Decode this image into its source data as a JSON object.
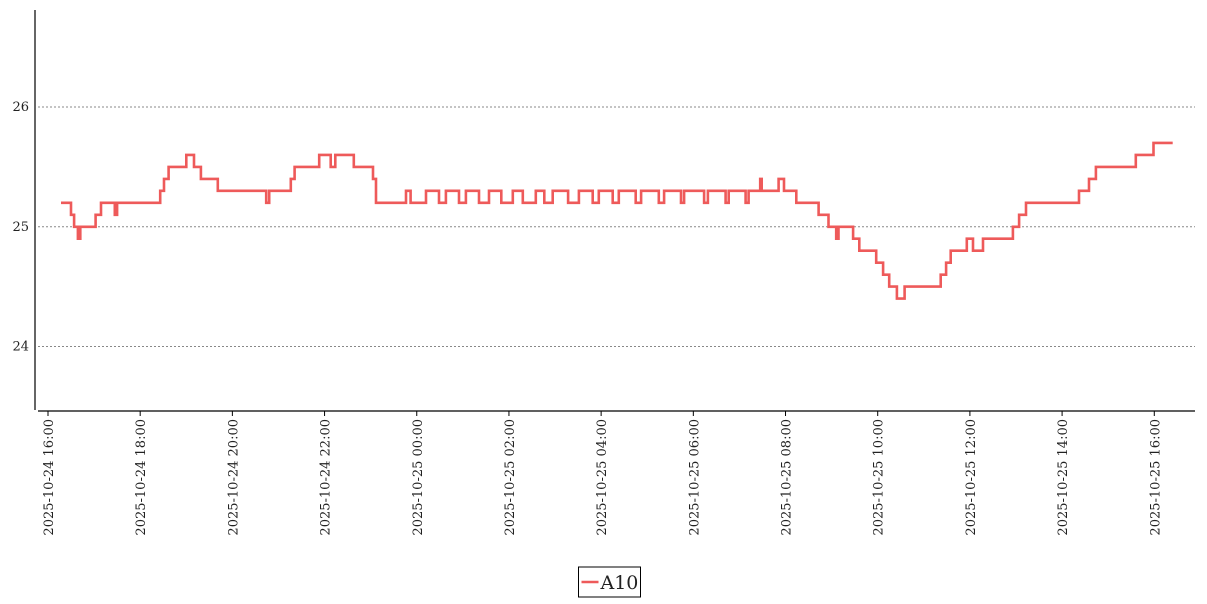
{
  "chart_data": {
    "type": "line",
    "drawstyle": "steps-post",
    "x": [
      "2025-10-24 16:17",
      "2025-10-24 16:30",
      "2025-10-24 16:34",
      "2025-10-24 16:39",
      "2025-10-24 16:42",
      "2025-10-24 17:02",
      "2025-10-24 17:09",
      "2025-10-24 17:27",
      "2025-10-24 17:30",
      "2025-10-24 18:26",
      "2025-10-24 18:31",
      "2025-10-24 18:37",
      "2025-10-24 19:00",
      "2025-10-24 19:10",
      "2025-10-24 19:19",
      "2025-10-24 19:41",
      "2025-10-24 20:44",
      "2025-10-24 20:48",
      "2025-10-24 21:16",
      "2025-10-24 21:21",
      "2025-10-24 21:53",
      "2025-10-24 22:08",
      "2025-10-24 22:14",
      "2025-10-24 22:38",
      "2025-10-24 23:03",
      "2025-10-24 23:07",
      "2025-10-24 23:46",
      "2025-10-24 23:52",
      "2025-10-25 00:12",
      "2025-10-25 00:29",
      "2025-10-25 00:38",
      "2025-10-25 00:55",
      "2025-10-25 01:04",
      "2025-10-25 01:21",
      "2025-10-25 01:34",
      "2025-10-25 01:50",
      "2025-10-25 02:05",
      "2025-10-25 02:18",
      "2025-10-25 02:35",
      "2025-10-25 02:46",
      "2025-10-25 02:57",
      "2025-10-25 03:17",
      "2025-10-25 03:31",
      "2025-10-25 03:49",
      "2025-10-25 03:57",
      "2025-10-25 04:15",
      "2025-10-25 04:23",
      "2025-10-25 04:45",
      "2025-10-25 04:52",
      "2025-10-25 05:15",
      "2025-10-25 05:22",
      "2025-10-25 05:44",
      "2025-10-25 05:48",
      "2025-10-25 06:14",
      "2025-10-25 06:19",
      "2025-10-25 06:42",
      "2025-10-25 06:46",
      "2025-10-25 07:08",
      "2025-10-25 07:12",
      "2025-10-25 07:27",
      "2025-10-25 07:29",
      "2025-10-25 07:51",
      "2025-10-25 07:58",
      "2025-10-25 08:14",
      "2025-10-25 08:43",
      "2025-10-25 08:56",
      "2025-10-25 09:06",
      "2025-10-25 09:09",
      "2025-10-25 09:28",
      "2025-10-25 09:36",
      "2025-10-25 09:58",
      "2025-10-25 10:07",
      "2025-10-25 10:15",
      "2025-10-25 10:25",
      "2025-10-25 10:35",
      "2025-10-25 11:22",
      "2025-10-25 11:29",
      "2025-10-25 11:35",
      "2025-10-25 11:56",
      "2025-10-25 12:04",
      "2025-10-25 12:17",
      "2025-10-25 12:56",
      "2025-10-25 13:04",
      "2025-10-25 13:13",
      "2025-10-25 14:22",
      "2025-10-25 14:35",
      "2025-10-25 14:44",
      "2025-10-25 15:36",
      "2025-10-25 15:59",
      "2025-10-25 16:24"
    ],
    "series": [
      {
        "name": "A10",
        "color": "#ee5a5a",
        "values": [
          25.2,
          25.1,
          25.0,
          24.9,
          25.0,
          25.1,
          25.2,
          25.1,
          25.2,
          25.3,
          25.4,
          25.5,
          25.6,
          25.5,
          25.4,
          25.3,
          25.2,
          25.3,
          25.4,
          25.5,
          25.6,
          25.5,
          25.6,
          25.5,
          25.4,
          25.2,
          25.3,
          25.2,
          25.3,
          25.2,
          25.3,
          25.2,
          25.3,
          25.2,
          25.3,
          25.2,
          25.3,
          25.2,
          25.3,
          25.2,
          25.3,
          25.2,
          25.3,
          25.2,
          25.3,
          25.2,
          25.3,
          25.2,
          25.3,
          25.2,
          25.3,
          25.2,
          25.3,
          25.2,
          25.3,
          25.2,
          25.3,
          25.2,
          25.3,
          25.4,
          25.3,
          25.4,
          25.3,
          25.2,
          25.1,
          25.0,
          24.9,
          25.0,
          24.9,
          24.8,
          24.7,
          24.6,
          24.5,
          24.4,
          24.5,
          24.6,
          24.7,
          24.8,
          24.9,
          24.8,
          24.9,
          25.0,
          25.1,
          25.2,
          25.3,
          25.4,
          25.5,
          25.6,
          25.7,
          25.7
        ]
      }
    ],
    "xlim": [
      "2025-10-24 15:47",
      "2025-10-25 16:53"
    ],
    "xticks": [
      "2025-10-24 16:00",
      "2025-10-24 18:00",
      "2025-10-24 20:00",
      "2025-10-24 22:00",
      "2025-10-25 00:00",
      "2025-10-25 02:00",
      "2025-10-25 04:00",
      "2025-10-25 06:00",
      "2025-10-25 08:00",
      "2025-10-25 10:00",
      "2025-10-25 12:00",
      "2025-10-25 14:00",
      "2025-10-25 16:00"
    ],
    "ylim": [
      23.47,
      26.81
    ],
    "yticks": [
      24,
      25,
      26
    ],
    "grid": true,
    "legend": "bottom"
  }
}
